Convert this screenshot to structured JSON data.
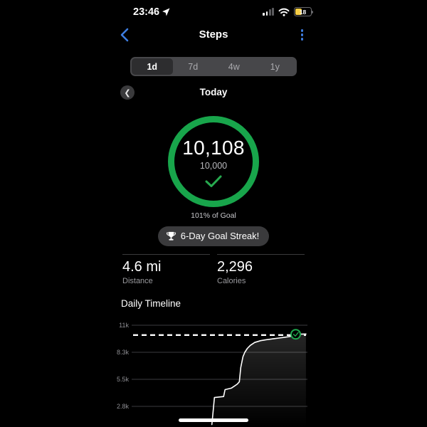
{
  "status_bar": {
    "time": "23:46",
    "battery_level": "18"
  },
  "nav": {
    "title": "Steps"
  },
  "range_selector": {
    "selected": "1d",
    "options": [
      {
        "label": "1d"
      },
      {
        "label": "7d"
      },
      {
        "label": "4w"
      },
      {
        "label": "1y"
      }
    ]
  },
  "date_nav": {
    "label": "Today"
  },
  "goal_ring": {
    "value": "10,108",
    "goal": "10,000",
    "percent_of_goal": "101% of Goal",
    "ring_color": "#18a54b",
    "check_color": "#27aa4f"
  },
  "streak_badge": {
    "label": "6-Day Goal Streak!"
  },
  "stats": [
    {
      "value": "4.6 mi",
      "label": "Distance"
    },
    {
      "value": "2,296",
      "label": "Calories"
    }
  ],
  "section": {
    "title": "Daily Timeline"
  },
  "chart_data": {
    "type": "area",
    "title": "Daily Timeline",
    "x_unit": "hour_of_day",
    "x_range": [
      0,
      24
    ],
    "goal_value": 10000,
    "goal_line_style": "dashed-white",
    "y_ticks": [
      {
        "value": 11000,
        "label": "11k"
      },
      {
        "value": 8250,
        "label": "8.3k"
      },
      {
        "value": 5500,
        "label": "5.5k"
      },
      {
        "value": 2750,
        "label": "2.8k"
      }
    ],
    "series": [
      {
        "name": "Cumulative Steps",
        "x_hours": [
          10.95,
          11.05,
          11.3,
          12.55,
          12.75,
          13.6,
          14.0,
          14.4,
          14.7,
          14.9,
          15.2,
          15.45,
          15.8,
          16.2,
          16.8,
          17.6,
          18.4,
          19.3,
          20.1,
          20.9,
          21.6,
          22.1,
          22.4,
          22.9,
          23.4,
          23.8
        ],
        "values": [
          900,
          1650,
          3650,
          3750,
          4450,
          4600,
          4800,
          5000,
          5250,
          6700,
          7800,
          8250,
          8650,
          8950,
          9250,
          9430,
          9530,
          9620,
          9700,
          9780,
          9860,
          9960,
          10080,
          10095,
          10105,
          10108
        ]
      }
    ],
    "marker": {
      "x_hour": 22.4,
      "value": 10080,
      "style": "green-circle-check"
    },
    "colors": {
      "line": "#ffffff",
      "marker": "#1fa84e",
      "grid": "#3d3d40",
      "tick_label": "#8e8e93"
    }
  }
}
